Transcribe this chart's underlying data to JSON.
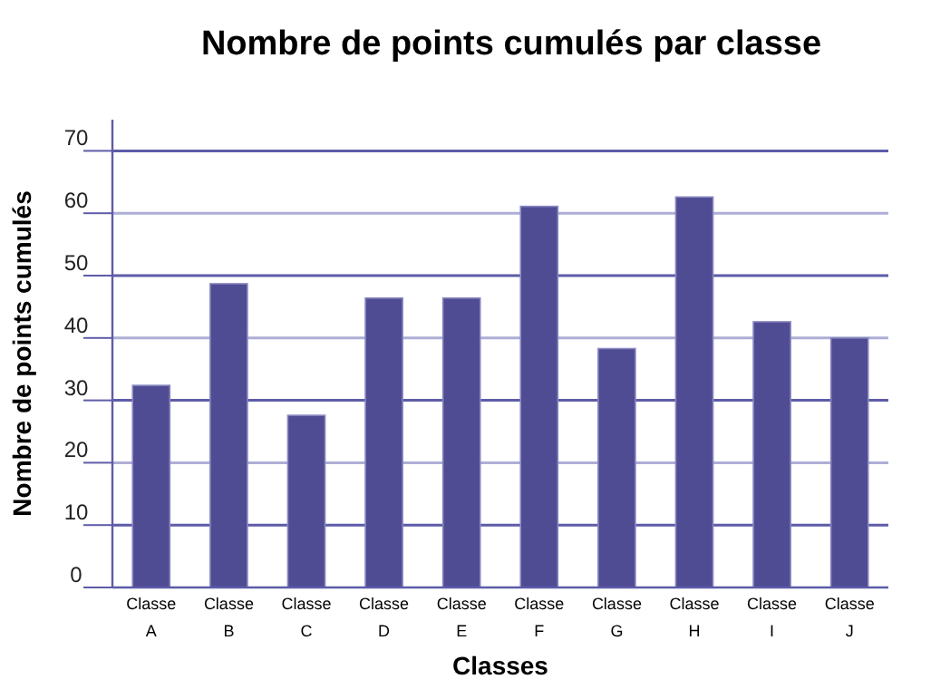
{
  "chart_data": {
    "type": "bar",
    "title": "Nombre de points cumulés par classe",
    "xlabel": "Classes",
    "ylabel": "Nombre de points cumulés",
    "categories": [
      "Classe A",
      "Classe B",
      "Classe C",
      "Classe D",
      "Classe E",
      "Classe F",
      "Classe G",
      "Classe H",
      "Classe I",
      "Classe J"
    ],
    "values": [
      32.4,
      48.7,
      27.6,
      46.4,
      46.4,
      61.1,
      38.3,
      62.6,
      42.6,
      40.0
    ],
    "color": "#4f4c93",
    "ylim": [
      0,
      75
    ],
    "yticks": [
      0,
      10,
      20,
      30,
      40,
      50,
      60,
      70
    ],
    "grid": "y"
  }
}
